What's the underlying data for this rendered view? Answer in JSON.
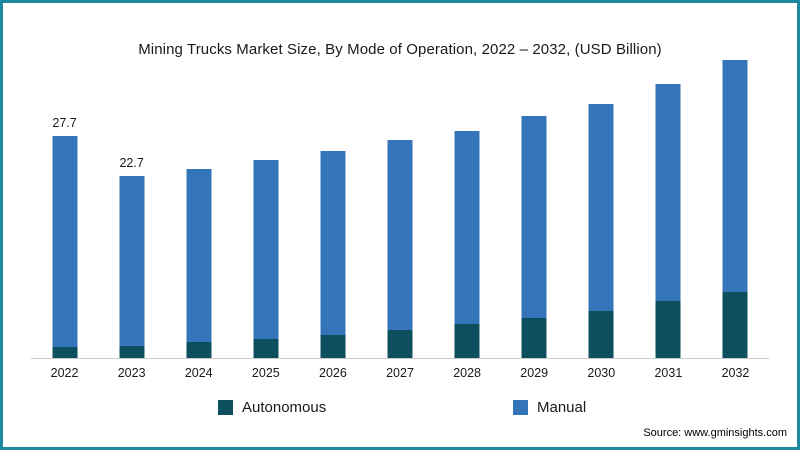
{
  "chart_data": {
    "type": "bar",
    "stacked": true,
    "title": "Mining Trucks Market Size, By Mode of Operation, 2022 – 2032, (USD Billion)",
    "categories": [
      "2022",
      "2023",
      "2024",
      "2025",
      "2026",
      "2027",
      "2028",
      "2029",
      "2030",
      "2031",
      "2032"
    ],
    "series": [
      {
        "name": "Autonomous",
        "color": "#0d4f5f",
        "values": [
          1.4,
          1.5,
          2.0,
          2.4,
          2.9,
          3.5,
          4.2,
          5.0,
          5.9,
          7.1,
          8.3
        ]
      },
      {
        "name": "Manual",
        "color": "#3474b9",
        "values": [
          26.3,
          21.2,
          21.6,
          22.3,
          23.0,
          23.8,
          24.2,
          25.3,
          25.8,
          27.1,
          28.9
        ]
      }
    ],
    "totals": [
      27.7,
      22.7,
      23.6,
      24.7,
      25.9,
      27.3,
      28.4,
      30.3,
      31.7,
      34.2,
      37.2
    ],
    "point_labels": [
      "27.7",
      "22.7",
      "",
      "",
      "",
      "",
      "",
      "",
      "",
      "",
      ""
    ],
    "xlabel": "",
    "ylabel": "",
    "ylim": [
      0,
      37.5
    ],
    "grid": false,
    "legend_position": "bottom"
  },
  "frame": {
    "border_color": "#1b8aa0",
    "background": "#ffffff"
  },
  "footer": {
    "source": "Source: www.gminsights.com"
  }
}
